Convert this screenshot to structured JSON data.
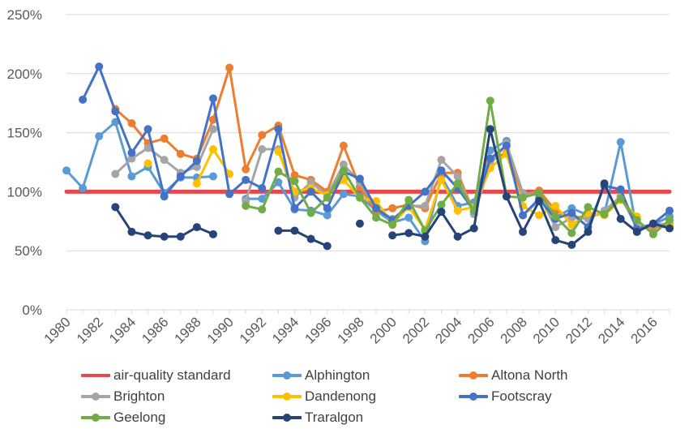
{
  "chart_data": {
    "type": "line",
    "title": "",
    "xlabel": "",
    "ylabel": "",
    "x_range": [
      1980,
      2017
    ],
    "ylim": [
      0,
      250
    ],
    "y_ticks": [
      0,
      50,
      100,
      150,
      200,
      250
    ],
    "y_tick_labels": [
      "0%",
      "50%",
      "100%",
      "150%",
      "200%",
      "250%"
    ],
    "x_ticks": [
      1980,
      1982,
      1984,
      1986,
      1988,
      1990,
      1992,
      1994,
      1996,
      1998,
      2000,
      2002,
      2004,
      2006,
      2008,
      2010,
      2012,
      2014,
      2016
    ],
    "x_tick_labels": [
      "1980",
      "1982",
      "1984",
      "1986",
      "1988",
      "1990",
      "1992",
      "1994",
      "1996",
      "1998",
      "2000",
      "2002",
      "2004",
      "2006",
      "2008",
      "2010",
      "2012",
      "2014",
      "2016"
    ],
    "grid": "horizontal",
    "legend_position": "bottom",
    "series": [
      {
        "name": "air-quality standard",
        "color": "#e8474b",
        "markers": false,
        "width": 5,
        "points": [
          [
            1980,
            100
          ],
          [
            2017,
            100
          ]
        ]
      },
      {
        "name": "Alphington",
        "color": "#5b9bd5",
        "markers": true,
        "points": [
          [
            1980,
            118
          ],
          [
            1981,
            103
          ],
          [
            1982,
            147
          ],
          [
            1983,
            159
          ],
          [
            1984,
            113
          ],
          [
            1985,
            121
          ],
          [
            1986,
            99
          ],
          [
            1987,
            112
          ],
          [
            1988,
            112
          ],
          [
            1989,
            113
          ],
          null,
          [
            1991,
            94
          ],
          [
            1992,
            94
          ],
          [
            1993,
            108
          ],
          [
            1994,
            85
          ],
          [
            1995,
            84
          ],
          [
            1996,
            80
          ],
          [
            1997,
            98
          ],
          [
            1998,
            96
          ],
          [
            1999,
            84
          ],
          [
            2000,
            74
          ],
          [
            2001,
            78
          ],
          [
            2002,
            58
          ],
          [
            2003,
            113
          ],
          [
            2004,
            88
          ],
          [
            2005,
            91
          ],
          [
            2006,
            135
          ],
          [
            2007,
            143
          ],
          [
            2008,
            80
          ],
          [
            2009,
            93
          ],
          [
            2010,
            78
          ],
          [
            2011,
            86
          ],
          [
            2012,
            80
          ],
          [
            2013,
            81
          ],
          [
            2014,
            142
          ],
          [
            2015,
            67
          ],
          [
            2016,
            72
          ],
          [
            2017,
            79
          ]
        ]
      },
      {
        "name": "Altona North",
        "color": "#ed7d31",
        "markers": true,
        "points": [
          [
            1983,
            170
          ],
          [
            1984,
            158
          ],
          [
            1985,
            141
          ],
          [
            1986,
            145
          ],
          [
            1987,
            132
          ],
          [
            1988,
            128
          ],
          [
            1989,
            161
          ],
          [
            1990,
            205
          ],
          [
            1991,
            119
          ],
          [
            1992,
            148
          ],
          [
            1993,
            156
          ],
          [
            1994,
            114
          ],
          [
            1995,
            110
          ],
          [
            1996,
            100
          ],
          [
            1997,
            139
          ],
          [
            1998,
            104
          ],
          [
            1999,
            83
          ],
          [
            2000,
            86
          ],
          [
            2001,
            89
          ],
          [
            2002,
            86
          ],
          [
            2003,
            116
          ],
          [
            2004,
            116
          ],
          [
            2005,
            82
          ],
          [
            2006,
            127
          ],
          [
            2007,
            133
          ],
          [
            2008,
            97
          ],
          [
            2009,
            101
          ],
          [
            2010,
            84
          ],
          [
            2011,
            78
          ],
          [
            2012,
            79
          ],
          [
            2013,
            82
          ],
          [
            2014,
            96
          ],
          [
            2015,
            70
          ],
          [
            2016,
            70
          ],
          [
            2017,
            71
          ]
        ]
      },
      {
        "name": "Brighton",
        "color": "#a5a5a5",
        "markers": true,
        "points": [
          [
            1983,
            115
          ],
          [
            1984,
            128
          ],
          [
            1985,
            137
          ],
          [
            1986,
            127
          ],
          [
            1987,
            116
          ],
          [
            1988,
            121
          ],
          [
            1989,
            153
          ],
          null,
          [
            1991,
            92
          ],
          [
            1992,
            136
          ],
          [
            1993,
            136
          ],
          [
            1994,
            95
          ],
          [
            1995,
            108
          ],
          [
            1996,
            97
          ],
          [
            1997,
            123
          ],
          [
            1998,
            108
          ],
          [
            1999,
            86
          ],
          [
            2000,
            77
          ],
          [
            2001,
            88
          ],
          [
            2002,
            88
          ],
          [
            2003,
            127
          ],
          [
            2004,
            113
          ],
          [
            2005,
            81
          ],
          [
            2006,
            123
          ],
          [
            2007,
            141
          ],
          [
            2008,
            99
          ],
          [
            2009,
            97
          ],
          [
            2010,
            70
          ],
          [
            2011,
            78
          ],
          [
            2012,
            77
          ],
          [
            2013,
            84
          ],
          [
            2014,
            96
          ],
          [
            2015,
            70
          ],
          [
            2016,
            72
          ],
          [
            2017,
            73
          ]
        ]
      },
      {
        "name": "Dandenong",
        "color": "#ffc000",
        "markers": true,
        "points": [
          [
            1985,
            124
          ],
          null,
          [
            1988,
            107
          ],
          [
            1989,
            136
          ],
          [
            1990,
            115
          ],
          null,
          [
            1993,
            134
          ],
          [
            1994,
            100
          ],
          [
            1995,
            103
          ],
          [
            1996,
            97
          ],
          [
            1997,
            110
          ],
          [
            1998,
            95
          ],
          [
            1999,
            92
          ],
          [
            2000,
            73
          ],
          [
            2001,
            87
          ],
          [
            2002,
            68
          ],
          [
            2003,
            110
          ],
          [
            2004,
            84
          ],
          [
            2005,
            87
          ],
          [
            2006,
            120
          ],
          [
            2007,
            132
          ],
          [
            2008,
            88
          ],
          [
            2009,
            80
          ],
          [
            2010,
            88
          ],
          [
            2011,
            72
          ],
          [
            2012,
            82
          ],
          [
            2013,
            80
          ],
          [
            2014,
            93
          ],
          [
            2015,
            79
          ],
          null,
          [
            2017,
            71
          ]
        ]
      },
      {
        "name": "Footscray",
        "color": "#4472c4",
        "markers": true,
        "points": [
          [
            1981,
            178
          ],
          [
            1982,
            206
          ],
          [
            1983,
            168
          ],
          [
            1984,
            133
          ],
          [
            1985,
            153
          ],
          [
            1986,
            96
          ],
          [
            1987,
            113
          ],
          [
            1988,
            126
          ],
          [
            1989,
            179
          ],
          [
            1990,
            98
          ],
          [
            1991,
            110
          ],
          [
            1992,
            103
          ],
          [
            1993,
            153
          ],
          [
            1994,
            86
          ],
          [
            1995,
            100
          ],
          [
            1996,
            86
          ],
          [
            1997,
            117
          ],
          [
            1998,
            111
          ],
          [
            1999,
            86
          ],
          [
            2000,
            76
          ],
          [
            2001,
            88
          ],
          [
            2002,
            100
          ],
          [
            2003,
            118
          ],
          [
            2004,
            103
          ],
          [
            2005,
            84
          ],
          [
            2006,
            128
          ],
          [
            2007,
            139
          ],
          [
            2008,
            80
          ],
          [
            2009,
            94
          ],
          [
            2010,
            77
          ],
          [
            2011,
            82
          ],
          [
            2012,
            70
          ],
          [
            2013,
            105
          ],
          [
            2014,
            102
          ],
          [
            2015,
            68
          ],
          [
            2016,
            73
          ],
          [
            2017,
            84
          ]
        ]
      },
      {
        "name": "Geelong",
        "color": "#70ad47",
        "markers": true,
        "points": [
          [
            1991,
            88
          ],
          [
            1992,
            85
          ],
          [
            1993,
            117
          ],
          [
            1994,
            109
          ],
          [
            1995,
            82
          ],
          [
            1996,
            95
          ],
          [
            1997,
            118
          ],
          [
            1998,
            95
          ],
          [
            1999,
            78
          ],
          [
            2000,
            72
          ],
          [
            2001,
            93
          ],
          [
            2002,
            67
          ],
          [
            2003,
            89
          ],
          [
            2004,
            107
          ],
          [
            2005,
            84
          ],
          [
            2006,
            177
          ],
          [
            2007,
            96
          ],
          [
            2008,
            95
          ],
          [
            2009,
            99
          ],
          [
            2010,
            79
          ],
          [
            2011,
            65
          ],
          [
            2012,
            87
          ],
          [
            2013,
            81
          ],
          [
            2014,
            94
          ],
          [
            2015,
            76
          ],
          [
            2016,
            64
          ],
          [
            2017,
            76
          ]
        ]
      },
      {
        "name": "Traralgon",
        "color": "#264478",
        "markers": true,
        "points": [
          [
            1983,
            87
          ],
          [
            1984,
            66
          ],
          [
            1985,
            63
          ],
          [
            1986,
            62
          ],
          [
            1987,
            62
          ],
          [
            1988,
            70
          ],
          [
            1989,
            64
          ],
          null,
          [
            1993,
            67
          ],
          [
            1994,
            67
          ],
          [
            1995,
            60
          ],
          [
            1996,
            54
          ],
          null,
          [
            1998,
            73
          ],
          null,
          [
            2000,
            63
          ],
          [
            2001,
            65
          ],
          [
            2002,
            62
          ],
          [
            2003,
            83
          ],
          [
            2004,
            62
          ],
          [
            2005,
            69
          ],
          [
            2006,
            153
          ],
          [
            2007,
            96
          ],
          [
            2008,
            66
          ],
          [
            2009,
            92
          ],
          [
            2010,
            59
          ],
          [
            2011,
            55
          ],
          [
            2012,
            66
          ],
          [
            2013,
            107
          ],
          [
            2014,
            77
          ],
          [
            2015,
            66
          ],
          [
            2016,
            73
          ],
          [
            2017,
            69
          ]
        ]
      }
    ]
  },
  "legend": {
    "items": [
      {
        "label": "air-quality standard",
        "color": "#e8474b",
        "markers": false
      },
      {
        "label": "Alphington",
        "color": "#5b9bd5",
        "markers": true
      },
      {
        "label": "Altona North",
        "color": "#ed7d31",
        "markers": true
      },
      {
        "label": "Brighton",
        "color": "#a5a5a5",
        "markers": true
      },
      {
        "label": "Dandenong",
        "color": "#ffc000",
        "markers": true
      },
      {
        "label": "Footscray",
        "color": "#4472c4",
        "markers": true
      },
      {
        "label": "Geelong",
        "color": "#70ad47",
        "markers": true
      },
      {
        "label": "Traralgon",
        "color": "#264478",
        "markers": true
      }
    ]
  }
}
